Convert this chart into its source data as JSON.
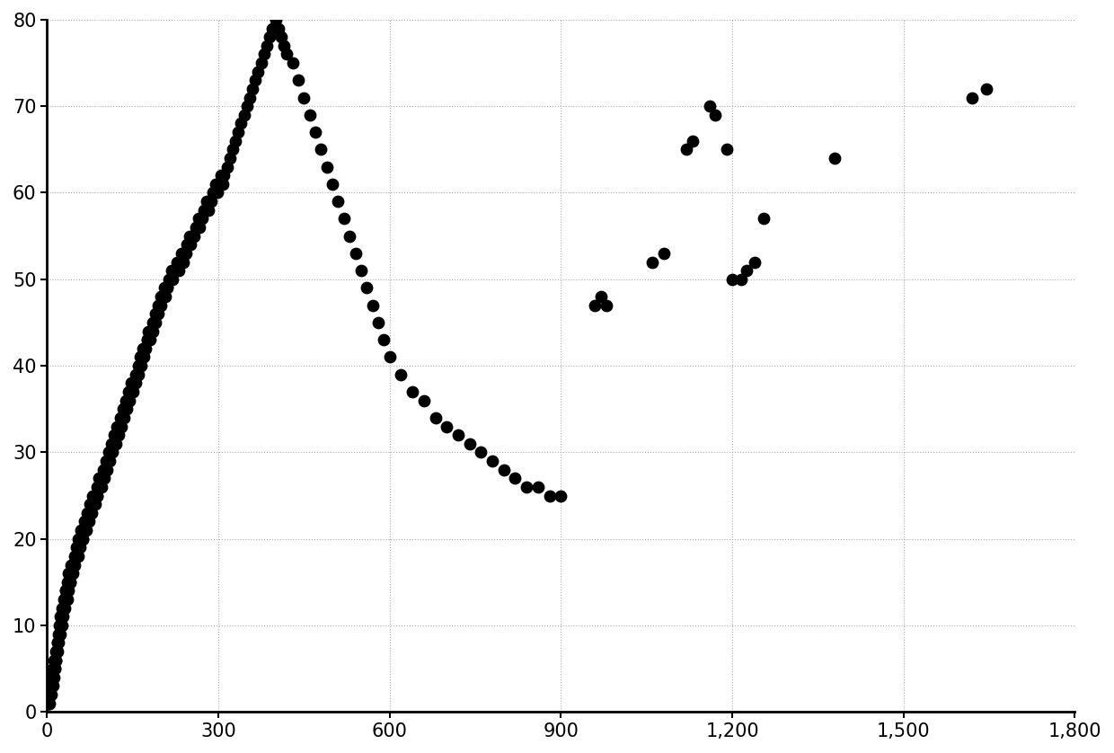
{
  "x": [
    2,
    3,
    4,
    5,
    6,
    7,
    8,
    8,
    10,
    10,
    12,
    12,
    13,
    14,
    15,
    15,
    16,
    17,
    18,
    18,
    19,
    20,
    20,
    22,
    22,
    23,
    23,
    25,
    25,
    26,
    27,
    27,
    28,
    28,
    30,
    30,
    31,
    32,
    32,
    33,
    33,
    35,
    35,
    36,
    37,
    38,
    38,
    40,
    40,
    41,
    42,
    42,
    43,
    44,
    45,
    45,
    47,
    48,
    48,
    50,
    50,
    51,
    52,
    53,
    54,
    55,
    55,
    56,
    57,
    58,
    58,
    60,
    60,
    62,
    62,
    63,
    65,
    65,
    66,
    68,
    68,
    70,
    70,
    72,
    72,
    73,
    75,
    75,
    77,
    78,
    78,
    80,
    80,
    82,
    83,
    85,
    85,
    87,
    88,
    88,
    90,
    90,
    92,
    93,
    95,
    95,
    97,
    98,
    100,
    100,
    102,
    103,
    105,
    105,
    107,
    108,
    110,
    110,
    112,
    113,
    115,
    115,
    117,
    118,
    120,
    120,
    122,
    123,
    125,
    125,
    127,
    128,
    130,
    130,
    132,
    133,
    135,
    135,
    137,
    138,
    140,
    140,
    142,
    143,
    145,
    145,
    147,
    148,
    150,
    150,
    153,
    155,
    155,
    157,
    158,
    160,
    160,
    162,
    163,
    165,
    165,
    167,
    168,
    170,
    170,
    172,
    175,
    175,
    177,
    178,
    180,
    180,
    182,
    185,
    185,
    187,
    190,
    190,
    192,
    195,
    195,
    197,
    200,
    200,
    203,
    205,
    207,
    210,
    210,
    213,
    215,
    218,
    220,
    222,
    225,
    228,
    230,
    232,
    235,
    238,
    240,
    243,
    245,
    248,
    250,
    252,
    255,
    258,
    260,
    262,
    265,
    267,
    270,
    272,
    275,
    278,
    280,
    283,
    285,
    288,
    290,
    293,
    295,
    298,
    300,
    303,
    305,
    308,
    310,
    315,
    320,
    325,
    330,
    335,
    340,
    345,
    350,
    355,
    360,
    365,
    370,
    375,
    380,
    385,
    390,
    395,
    400,
    405,
    410,
    415,
    420,
    430,
    440,
    450,
    460,
    470,
    480,
    490,
    500,
    510,
    520,
    530,
    540,
    550,
    560,
    570,
    580,
    590,
    600,
    620,
    640,
    660,
    680,
    700,
    720,
    740,
    760,
    780,
    800,
    820,
    840,
    860,
    880,
    900,
    960,
    970,
    980,
    1060,
    1080,
    1120,
    1130,
    1160,
    1170,
    1190,
    1200,
    1215,
    1225,
    1240,
    1255,
    1380,
    1620,
    1645
  ],
  "y": [
    1,
    1,
    1,
    2,
    2,
    2,
    3,
    4,
    3,
    5,
    4,
    6,
    5,
    5,
    6,
    7,
    6,
    7,
    7,
    8,
    8,
    8,
    9,
    9,
    10,
    9,
    11,
    10,
    11,
    10,
    11,
    12,
    11,
    12,
    12,
    13,
    12,
    13,
    14,
    13,
    14,
    13,
    15,
    14,
    15,
    14,
    16,
    15,
    16,
    15,
    16,
    17,
    16,
    17,
    16,
    17,
    17,
    17,
    18,
    18,
    18,
    19,
    18,
    19,
    18,
    19,
    20,
    19,
    20,
    19,
    20,
    20,
    21,
    20,
    21,
    20,
    21,
    22,
    21,
    22,
    21,
    22,
    23,
    22,
    23,
    22,
    23,
    24,
    23,
    24,
    23,
    24,
    25,
    24,
    25,
    24,
    25,
    25,
    26,
    25,
    26,
    27,
    26,
    27,
    26,
    27,
    27,
    28,
    27,
    28,
    28,
    29,
    28,
    29,
    29,
    30,
    29,
    30,
    30,
    31,
    30,
    31,
    31,
    32,
    31,
    32,
    32,
    33,
    32,
    33,
    33,
    34,
    33,
    34,
    34,
    35,
    34,
    35,
    35,
    36,
    35,
    36,
    36,
    37,
    36,
    37,
    37,
    38,
    37,
    38,
    38,
    39,
    38,
    39,
    39,
    40,
    39,
    40,
    41,
    40,
    41,
    41,
    42,
    41,
    42,
    42,
    43,
    43,
    43,
    44,
    43,
    44,
    44,
    45,
    44,
    45,
    46,
    45,
    46,
    47,
    46,
    47,
    47,
    48,
    48,
    49,
    48,
    49,
    49,
    50,
    50,
    51,
    50,
    51,
    51,
    52,
    51,
    52,
    53,
    52,
    53,
    53,
    54,
    54,
    55,
    54,
    55,
    55,
    56,
    56,
    57,
    56,
    57,
    57,
    58,
    58,
    59,
    58,
    59,
    59,
    60,
    60,
    61,
    60,
    61,
    61,
    62,
    61,
    62,
    63,
    64,
    65,
    66,
    67,
    68,
    69,
    70,
    71,
    72,
    73,
    74,
    75,
    76,
    77,
    78,
    79,
    80,
    79,
    78,
    77,
    76,
    75,
    73,
    71,
    69,
    67,
    65,
    63,
    61,
    59,
    57,
    55,
    53,
    51,
    49,
    47,
    45,
    43,
    41,
    39,
    37,
    36,
    34,
    33,
    32,
    31,
    30,
    29,
    28,
    27,
    26,
    26,
    25,
    25,
    47,
    48,
    47,
    52,
    53,
    65,
    66,
    70,
    69,
    65,
    50,
    50,
    51,
    52,
    57,
    64,
    71,
    72
  ],
  "xlim": [
    0,
    1800
  ],
  "ylim": [
    0,
    80
  ],
  "xticks": [
    0,
    300,
    600,
    900,
    1200,
    1500,
    1800
  ],
  "yticks": [
    0,
    10,
    20,
    30,
    40,
    50,
    60,
    70,
    80
  ],
  "dot_color": "#000000",
  "dot_size": 80,
  "background_color": "#ffffff"
}
